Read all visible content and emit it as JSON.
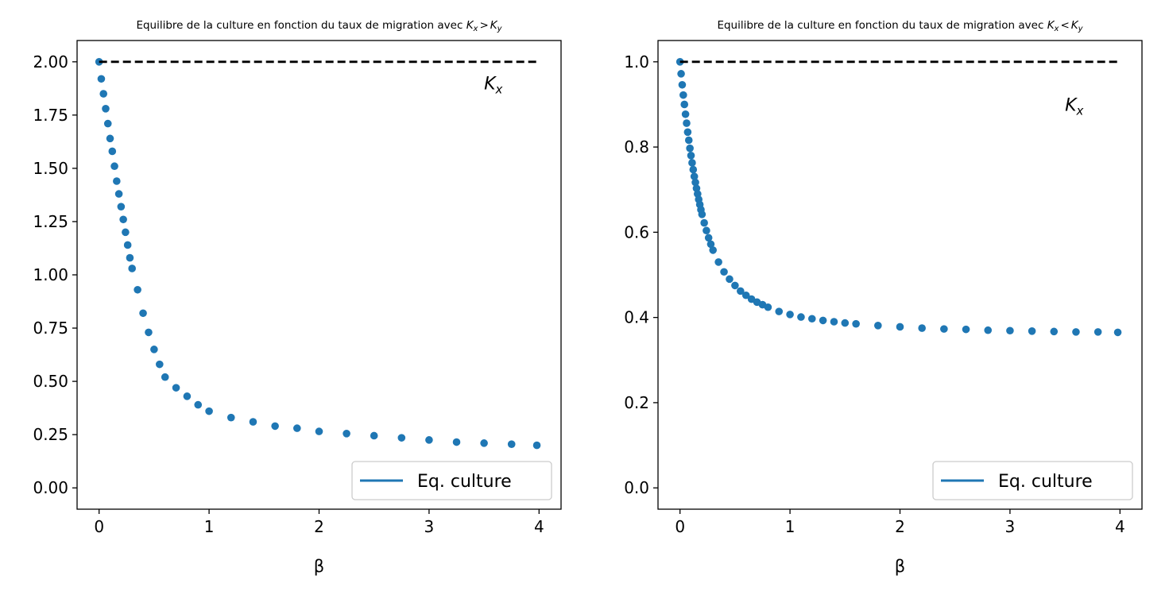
{
  "chart_data": [
    {
      "type": "scatter",
      "title": "Equilibre de la culture en fonction du taux de migration avec K_x > K_y",
      "title_parts": {
        "prefix": "Equilibre de la culture en fonction du taux de migration avec ",
        "k1": "K",
        "s1": "x",
        "op": ">",
        "k2": "K",
        "s2": "y"
      },
      "xlabel": "β",
      "ylabel": "",
      "xlim": [
        -0.2,
        4.2
      ],
      "ylim": [
        -0.1,
        2.1
      ],
      "x_ticks": [
        0,
        1,
        2,
        3,
        4
      ],
      "x_tick_labels": [
        "0",
        "1",
        "2",
        "3",
        "4"
      ],
      "y_ticks": [
        0,
        0.25,
        0.5,
        0.75,
        1.0,
        1.25,
        1.5,
        1.75,
        2.0
      ],
      "y_tick_labels": [
        "0.00",
        "0.25",
        "0.50",
        "0.75",
        "1.00",
        "1.25",
        "1.50",
        "1.75",
        "2.00"
      ],
      "grid": false,
      "legend": {
        "placement": "lower right",
        "entries": [
          "Eq. culture"
        ]
      },
      "reference_line": {
        "y": 2.0,
        "x_range": [
          0,
          4
        ],
        "style": "dashed",
        "color": "#000000"
      },
      "annotation": {
        "base": "K",
        "sub": "x",
        "x": 3.5,
        "y": 1.9
      },
      "series": [
        {
          "name": "Eq. culture",
          "color": "#1f77b4",
          "x": [
            0,
            0.02,
            0.04,
            0.06,
            0.08,
            0.1,
            0.12,
            0.14,
            0.16,
            0.18,
            0.2,
            0.22,
            0.24,
            0.26,
            0.28,
            0.3,
            0.35,
            0.4,
            0.45,
            0.5,
            0.55,
            0.6,
            0.7,
            0.8,
            0.9,
            1.0,
            1.2,
            1.4,
            1.6,
            1.8,
            2.0,
            2.25,
            2.5,
            2.75,
            3.0,
            3.25,
            3.5,
            3.75,
            3.98
          ],
          "y": [
            2.0,
            1.92,
            1.85,
            1.78,
            1.71,
            1.64,
            1.58,
            1.51,
            1.44,
            1.38,
            1.32,
            1.26,
            1.2,
            1.14,
            1.08,
            1.03,
            0.93,
            0.82,
            0.73,
            0.65,
            0.58,
            0.52,
            0.47,
            0.43,
            0.39,
            0.36,
            0.33,
            0.31,
            0.29,
            0.28,
            0.265,
            0.255,
            0.245,
            0.235,
            0.225,
            0.215,
            0.21,
            0.205,
            0.2
          ]
        }
      ]
    },
    {
      "type": "scatter",
      "title": "Equilibre de la culture en fonction du taux de migration avec K_x < K_y",
      "title_parts": {
        "prefix": "Equilibre de la culture en fonction du taux de migration avec ",
        "k1": "K",
        "s1": "x",
        "op": "<",
        "k2": "K",
        "s2": "y"
      },
      "xlabel": "β",
      "ylabel": "",
      "xlim": [
        -0.2,
        4.2
      ],
      "ylim": [
        -0.05,
        1.05
      ],
      "x_ticks": [
        0,
        1,
        2,
        3,
        4
      ],
      "x_tick_labels": [
        "0",
        "1",
        "2",
        "3",
        "4"
      ],
      "y_ticks": [
        0,
        0.2,
        0.4,
        0.6,
        0.8,
        1.0
      ],
      "y_tick_labels": [
        "0.0",
        "0.2",
        "0.4",
        "0.6",
        "0.8",
        "1.0"
      ],
      "grid": false,
      "legend": {
        "placement": "lower right",
        "entries": [
          "Eq. culture"
        ]
      },
      "reference_line": {
        "y": 1.0,
        "x_range": [
          0,
          4
        ],
        "style": "dashed",
        "color": "#000000"
      },
      "annotation": {
        "base": "K",
        "sub": "x",
        "x": 3.5,
        "y": 0.9
      },
      "series": [
        {
          "name": "Eq. culture",
          "color": "#1f77b4",
          "x": [
            0,
            0.01,
            0.02,
            0.03,
            0.04,
            0.05,
            0.06,
            0.07,
            0.08,
            0.09,
            0.1,
            0.11,
            0.12,
            0.13,
            0.14,
            0.15,
            0.16,
            0.17,
            0.18,
            0.19,
            0.2,
            0.22,
            0.24,
            0.26,
            0.28,
            0.3,
            0.35,
            0.4,
            0.45,
            0.5,
            0.55,
            0.6,
            0.65,
            0.7,
            0.75,
            0.8,
            0.9,
            1.0,
            1.1,
            1.2,
            1.3,
            1.4,
            1.5,
            1.6,
            1.8,
            2.0,
            2.2,
            2.4,
            2.6,
            2.8,
            3.0,
            3.2,
            3.4,
            3.6,
            3.8,
            3.98
          ],
          "y": [
            1.0,
            0.972,
            0.946,
            0.922,
            0.9,
            0.877,
            0.856,
            0.835,
            0.816,
            0.797,
            0.78,
            0.763,
            0.747,
            0.731,
            0.717,
            0.703,
            0.69,
            0.677,
            0.665,
            0.653,
            0.642,
            0.622,
            0.604,
            0.587,
            0.572,
            0.558,
            0.53,
            0.507,
            0.49,
            0.475,
            0.462,
            0.452,
            0.443,
            0.436,
            0.43,
            0.424,
            0.414,
            0.407,
            0.401,
            0.397,
            0.393,
            0.39,
            0.387,
            0.385,
            0.381,
            0.378,
            0.375,
            0.373,
            0.372,
            0.37,
            0.369,
            0.368,
            0.367,
            0.366,
            0.366,
            0.365
          ]
        }
      ]
    }
  ]
}
